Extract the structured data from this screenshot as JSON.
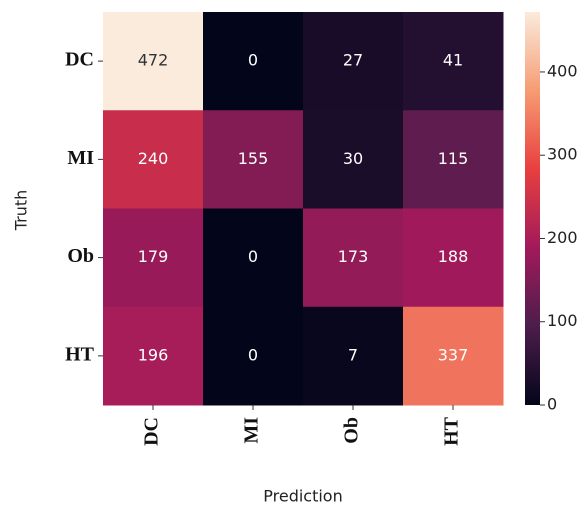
{
  "chart_data": {
    "type": "heatmap",
    "x_categories": [
      "DC",
      "MI",
      "Ob",
      "HT"
    ],
    "y_categories": [
      "DC",
      "MI",
      "Ob",
      "HT"
    ],
    "values": [
      [
        472,
        0,
        27,
        41
      ],
      [
        240,
        155,
        30,
        115
      ],
      [
        179,
        0,
        173,
        188
      ],
      [
        196,
        0,
        7,
        337
      ]
    ],
    "xlabel": "Prediction",
    "ylabel": "Truth",
    "colormap": "rocket",
    "zlim": [
      0,
      472
    ],
    "zticks": [
      0,
      100,
      200,
      300,
      400
    ]
  }
}
